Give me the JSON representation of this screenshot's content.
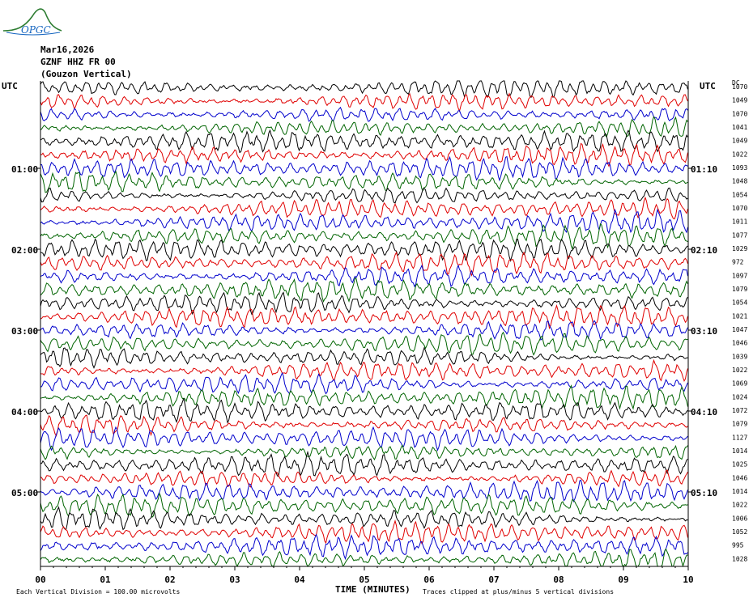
{
  "logo": {
    "text": "OPGC"
  },
  "header": {
    "date": "Mar16,2026",
    "channel": "GZNF HHZ FR 00",
    "station_desc": "(Gouzon Vertical)"
  },
  "chart_data": {
    "type": "line",
    "chart_kind": "helicorder",
    "left_axis_label": "UTC",
    "right_axis_label": "UTC",
    "dc_header": "DC",
    "left_time_labels": [
      "01:00",
      "02:00",
      "03:00",
      "04:00",
      "05:00"
    ],
    "right_time_labels": [
      "01:10",
      "02:10",
      "03:10",
      "04:10",
      "05:10"
    ],
    "x_ticks": [
      "00",
      "01",
      "02",
      "03",
      "04",
      "05",
      "06",
      "07",
      "08",
      "09",
      "10"
    ],
    "xlabel": "TIME (MINUTES)",
    "xlim": [
      0,
      10
    ],
    "trace_colors": [
      "#000000",
      "#e00000",
      "#0000cc",
      "#006400"
    ],
    "dc_offsets": [
      1070,
      1049,
      1070,
      1041,
      1049,
      1022,
      1093,
      1048,
      1054,
      1070,
      1011,
      1077,
      1029,
      972,
      1097,
      1079,
      1054,
      1021,
      1047,
      1046,
      1039,
      1022,
      1069,
      1024,
      1072,
      1079,
      1127,
      1014,
      1025,
      1046,
      1014,
      1022,
      1006,
      1052,
      995,
      1028
    ],
    "grid": false
  },
  "footer": {
    "scale_note": "Each Vertical Division = 100.00 microvolts",
    "clip_note": "Traces clipped at plus/minus 5 vertical divisions"
  }
}
